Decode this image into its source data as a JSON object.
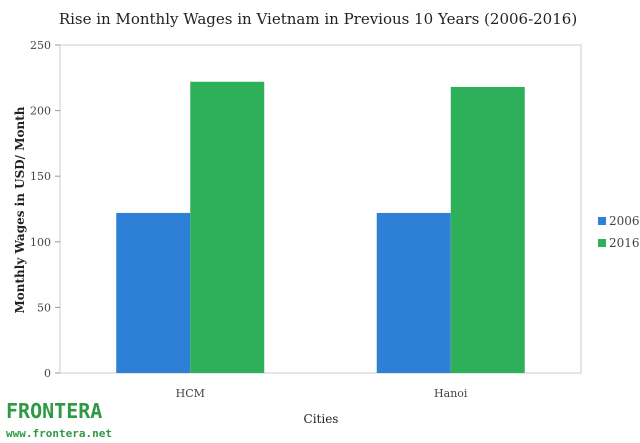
{
  "chart_data": {
    "type": "bar",
    "title": "Rise in Monthly Wages in Vietnam in Previous 10 Years (2006-2016)",
    "xlabel": "Cities",
    "ylabel": "Monthly Wages in USD/ Month",
    "categories": [
      "HCM",
      "Hanoi"
    ],
    "series": [
      {
        "name": "2006",
        "values": [
          122,
          122
        ],
        "color": "#2e7fd6"
      },
      {
        "name": "2016",
        "values": [
          222,
          218
        ],
        "color": "#2eaf5a"
      }
    ],
    "ylim": [
      0,
      250
    ],
    "yticks": [
      0,
      50,
      100,
      150,
      200,
      250
    ],
    "ytick_labels": [
      "0",
      "50",
      "100",
      "150",
      "200",
      "250"
    ],
    "grid": false,
    "legend_position": "right"
  },
  "branding": {
    "name": "FRONTERA",
    "url": "www.frontera.net",
    "color": "#2e9a46"
  }
}
